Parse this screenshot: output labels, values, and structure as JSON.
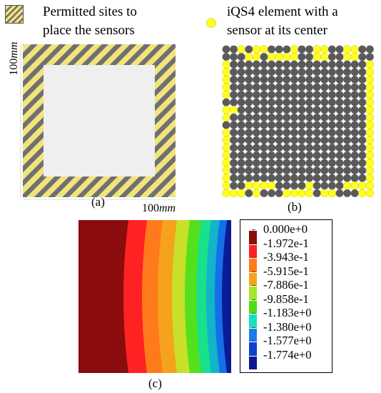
{
  "panel_a": {
    "legend_text": [
      "Permitted sites to",
      "place the sensors"
    ],
    "dim_vertical": "100",
    "dim_vertical_unit": "mm",
    "dim_horizontal": "100",
    "dim_horizontal_unit": "mm",
    "label": "(a)",
    "colors": {
      "stripe_yellow": "#f1e47c",
      "stripe_gray": "#707070",
      "inner": "#efefef"
    }
  },
  "panel_b": {
    "legend_text": [
      "iQS4 element with a",
      "sensor at its center"
    ],
    "label": "(b)",
    "grid_size": 20,
    "colors": {
      "sensor": "#ffff22",
      "element": "#5a5a5a"
    },
    "sensor_cells": [
      [
        0,
        2
      ],
      [
        0,
        4
      ],
      [
        0,
        5
      ],
      [
        0,
        9
      ],
      [
        0,
        12
      ],
      [
        0,
        13
      ],
      [
        0,
        16
      ],
      [
        0,
        17
      ],
      [
        1,
        3
      ],
      [
        1,
        4
      ],
      [
        1,
        6
      ],
      [
        1,
        7
      ],
      [
        1,
        8
      ],
      [
        1,
        9
      ],
      [
        1,
        12
      ],
      [
        1,
        13
      ],
      [
        1,
        16
      ],
      [
        1,
        17
      ],
      [
        2,
        0
      ],
      [
        2,
        19
      ],
      [
        3,
        0
      ],
      [
        3,
        19
      ],
      [
        4,
        0
      ],
      [
        4,
        19
      ],
      [
        5,
        0
      ],
      [
        5,
        19
      ],
      [
        6,
        0
      ],
      [
        6,
        19
      ],
      [
        7,
        19
      ],
      [
        8,
        0
      ],
      [
        8,
        1
      ],
      [
        8,
        19
      ],
      [
        9,
        0
      ],
      [
        9,
        19
      ],
      [
        10,
        19
      ],
      [
        11,
        0
      ],
      [
        11,
        19
      ],
      [
        12,
        0
      ],
      [
        12,
        19
      ],
      [
        13,
        0
      ],
      [
        13,
        19
      ],
      [
        14,
        0
      ],
      [
        14,
        19
      ],
      [
        15,
        0
      ],
      [
        15,
        19
      ],
      [
        16,
        0
      ],
      [
        16,
        19
      ],
      [
        17,
        0
      ],
      [
        17,
        19
      ],
      [
        18,
        0
      ],
      [
        18,
        3
      ],
      [
        18,
        4
      ],
      [
        18,
        5
      ],
      [
        18,
        6
      ],
      [
        18,
        11
      ],
      [
        18,
        16
      ],
      [
        18,
        17
      ],
      [
        18,
        18
      ],
      [
        18,
        19
      ],
      [
        19,
        0
      ],
      [
        19,
        1
      ],
      [
        19,
        2
      ],
      [
        19,
        4
      ],
      [
        19,
        8
      ],
      [
        19,
        9
      ],
      [
        19,
        10
      ],
      [
        19,
        11
      ],
      [
        19,
        13
      ],
      [
        19,
        14
      ],
      [
        19,
        18
      ],
      [
        19,
        19
      ]
    ]
  },
  "panel_c": {
    "label": "(c)",
    "contour_colors": [
      "#8a0c0c",
      "#ff2222",
      "#ff7a1a",
      "#f5a21c",
      "#c8e02a",
      "#55e01e",
      "#18e08c",
      "#12b4c8",
      "#1470e8",
      "#1038c8",
      "#0a1a96"
    ],
    "colorbar": {
      "labels": [
        "0.000e+0",
        "-1.972e-1",
        "-3.943e-1",
        "-5.915e-1",
        "-7.886e-1",
        "-9.858e-1",
        "-1.183e+0",
        "-1.380e+0",
        "-1.577e+0",
        "-1.774e+0"
      ],
      "colors": [
        "#8a0c0c",
        "#ff2222",
        "#ff7a1a",
        "#f5a21c",
        "#a4e62a",
        "#4ddc16",
        "#18e0c0",
        "#1a7ce8",
        "#1040d0",
        "#0c1a90"
      ]
    }
  }
}
